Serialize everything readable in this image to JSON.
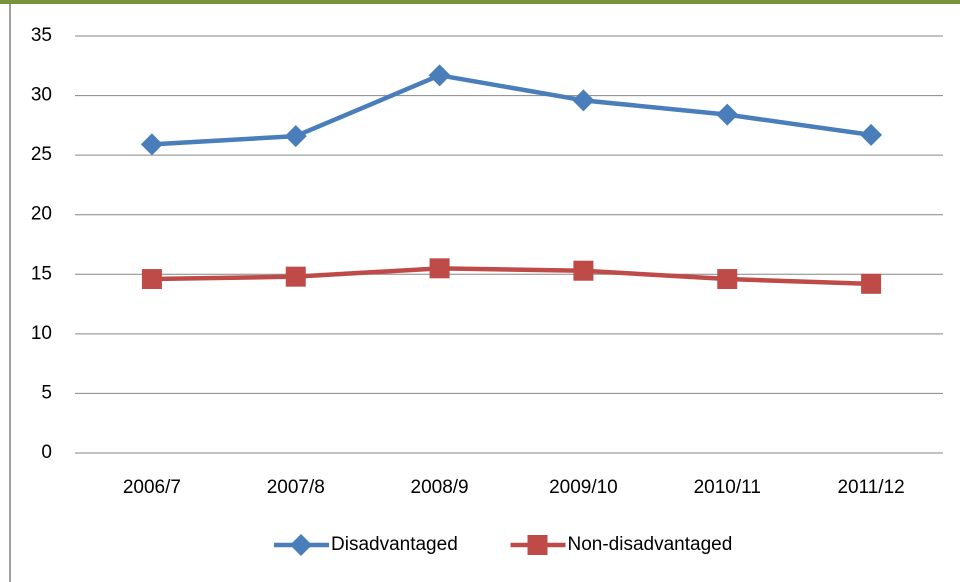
{
  "chart_data": {
    "type": "line",
    "categories": [
      "2006/7",
      "2007/8",
      "2008/9",
      "2009/10",
      "2010/11",
      "2011/12"
    ],
    "series": [
      {
        "name": "Disadvantaged",
        "color": "#4a7ebb",
        "marker": "diamond",
        "values": [
          25.9,
          26.6,
          31.7,
          29.6,
          28.4,
          26.7
        ]
      },
      {
        "name": "Non-disadvantaged",
        "color": "#be4b48",
        "marker": "square",
        "values": [
          14.6,
          14.8,
          15.5,
          15.3,
          14.6,
          14.2
        ]
      }
    ],
    "ylim": [
      0,
      35
    ],
    "yticks": [
      0,
      5,
      10,
      15,
      20,
      25,
      30,
      35
    ],
    "grid": true,
    "legend": "bottom"
  }
}
